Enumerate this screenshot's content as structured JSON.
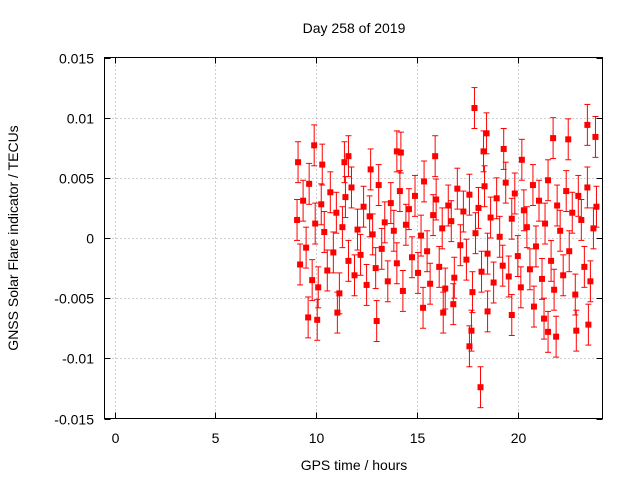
{
  "chart_data": {
    "type": "scatter",
    "title": "Day 258 of 2019",
    "xlabel": "GPS time / hours",
    "ylabel": "GNSS Solar Flare indicator / TECUs",
    "xlim": [
      -0.5,
      24.2
    ],
    "ylim": [
      -0.015,
      0.015
    ],
    "x_ticks": [
      0,
      5,
      10,
      15,
      20
    ],
    "x_tick_labels": [
      "0",
      "5",
      "10",
      "15",
      "20"
    ],
    "y_ticks": [
      -0.015,
      -0.01,
      -0.005,
      0,
      0.005,
      0.01,
      0.015
    ],
    "y_tick_labels": [
      "-0.015",
      "-0.01",
      "-0.005",
      "0",
      "0.005",
      "0.01",
      "0.015"
    ],
    "grid": true,
    "legend": "none",
    "marker": "filled-square",
    "error_bars": true,
    "error_bar_halfwidth": 0.0017,
    "color": "#ff0000",
    "x": [
      9.05,
      9.2,
      9.35,
      9.5,
      9.65,
      9.8,
      9.95,
      10.1,
      10.25,
      10.4,
      10.55,
      10.7,
      10.85,
      11.0,
      11.15,
      11.3,
      11.45,
      11.6,
      11.75,
      11.9,
      12.05,
      12.2,
      12.35,
      12.5,
      12.65,
      12.8,
      12.95,
      13.1,
      13.25,
      13.4,
      13.55,
      13.7,
      13.85,
      14.0,
      14.15,
      14.3,
      14.45,
      14.6,
      14.75,
      14.9,
      15.05,
      15.2,
      15.35,
      15.5,
      15.65,
      15.8,
      15.95,
      16.1,
      16.25,
      16.4,
      16.55,
      16.7,
      16.85,
      17.0,
      17.15,
      17.3,
      17.45,
      17.6,
      17.75,
      17.9,
      18.05,
      18.2,
      18.35,
      18.5,
      18.65,
      18.8,
      18.95,
      19.1,
      19.25,
      19.4,
      19.55,
      19.7,
      19.85,
      20.0,
      20.15,
      20.3,
      20.45,
      20.6,
      20.75,
      20.9,
      21.05,
      21.2,
      21.35,
      21.5,
      21.65,
      21.8,
      21.95,
      22.1,
      22.25,
      22.4,
      22.55,
      22.7,
      22.85,
      23.0,
      23.15,
      23.3,
      23.45,
      23.6,
      23.75,
      23.9,
      9.1,
      9.6,
      10.3,
      11.4,
      12.7,
      14.2,
      15.9,
      16.8,
      17.7,
      17.85,
      18.15,
      18.3,
      18.45,
      19.3,
      20.2,
      21.5,
      21.75,
      22.5,
      23.45,
      23.85,
      9.9,
      10.05,
      11.05,
      11.6,
      13.0,
      14.0,
      15.3,
      16.3,
      17.6,
      18.5,
      19.7,
      20.8,
      21.3,
      21.9,
      22.9,
      23.5
    ],
    "y": [
      0.0015,
      -0.0022,
      0.0031,
      -0.0008,
      0.0045,
      -0.0035,
      0.0012,
      -0.0041,
      0.0028,
      0.0005,
      -0.0027,
      0.0038,
      -0.0012,
      0.0021,
      -0.0046,
      0.0009,
      0.0034,
      -0.0019,
      0.0042,
      -0.0031,
      0.0007,
      -0.0014,
      0.0026,
      -0.0039,
      0.0018,
      0.0003,
      -0.0025,
      0.0044,
      -0.0009,
      0.0013,
      -0.0036,
      0.0029,
      0.0006,
      -0.0021,
      0.0039,
      -0.0044,
      0.0011,
      0.0024,
      -0.0016,
      0.0035,
      -0.0029,
      0.0002,
      0.0047,
      -0.0011,
      -0.0038,
      0.0019,
      0.0032,
      -0.0024,
      0.0008,
      -0.0042,
      0.0027,
      0.0014,
      -0.0033,
      0.0041,
      -0.0006,
      0.0022,
      -0.0018,
      0.0036,
      -0.0045,
      0.0004,
      0.0025,
      -0.0028,
      0.0043,
      -0.0013,
      0.0017,
      -0.0037,
      0.0033,
      0.0001,
      -0.0023,
      0.0046,
      -0.0032,
      0.0016,
      0.0037,
      -0.0015,
      -0.0041,
      0.0023,
      0.0009,
      -0.0026,
      0.0044,
      -0.0007,
      0.0031,
      -0.0034,
      0.0012,
      0.0048,
      -0.0019,
      -0.0043,
      0.0027,
      0.0006,
      -0.0031,
      0.0039,
      -0.0011,
      0.0021,
      -0.0047,
      0.0035,
      0.0015,
      -0.0024,
      0.0042,
      -0.0036,
      0.0008,
      0.0026,
      0.0063,
      -0.0066,
      0.0061,
      0.0063,
      0.0057,
      0.0071,
      0.0068,
      -0.0055,
      -0.0077,
      0.0108,
      -0.0124,
      0.0072,
      0.0087,
      0.0074,
      0.0065,
      -0.0078,
      0.0083,
      0.0082,
      0.0094,
      0.0084,
      0.0077,
      -0.0068,
      -0.0062,
      0.0068,
      -0.0069,
      0.0072,
      -0.0058,
      -0.0062,
      -0.009,
      -0.0061,
      -0.0064,
      -0.0057,
      -0.0067,
      -0.0082,
      -0.0077,
      -0.0072
    ]
  }
}
